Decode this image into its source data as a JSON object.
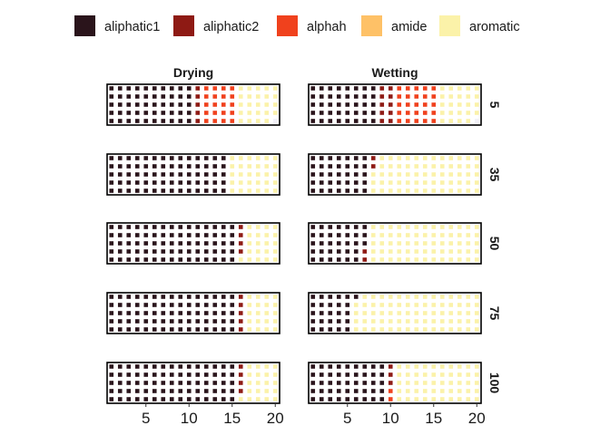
{
  "chart_data": {
    "type": "waffle",
    "legend": {
      "position": "top",
      "items": [
        {
          "label": "aliphatic1",
          "color": "#2a141b"
        },
        {
          "label": "aliphatic2",
          "color": "#8e1a14"
        },
        {
          "label": "alphah",
          "color": "#f0411d"
        },
        {
          "label": "amide",
          "color": "#fec167"
        },
        {
          "label": "aromatic",
          "color": "#fbf2a9"
        }
      ]
    },
    "columns": [
      "Drying",
      "Wetting"
    ],
    "rows": [
      "5",
      "35",
      "50",
      "75",
      "100"
    ],
    "x_ticks": [
      5,
      10,
      15,
      20
    ],
    "xlim": [
      0.5,
      20.5
    ],
    "grid_rows": 5,
    "blank_color": "#f2f0f7",
    "panels": [
      {
        "column": "Drying",
        "row": "5",
        "counts": {
          "aliphatic1": 50,
          "aliphatic2": 5,
          "alphah": 20,
          "amide": 0,
          "aromatic": 24
        }
      },
      {
        "column": "Wetting",
        "row": "5",
        "counts": {
          "aliphatic1": 40,
          "aliphatic2": 10,
          "alphah": 25,
          "amide": 0,
          "aromatic": 24
        }
      },
      {
        "column": "Drying",
        "row": "35",
        "counts": {
          "aliphatic1": 70,
          "aliphatic2": 0,
          "alphah": 0,
          "amide": 0,
          "aromatic": 30
        }
      },
      {
        "column": "Wetting",
        "row": "35",
        "counts": {
          "aliphatic1": 35,
          "aliphatic2": 2,
          "alphah": 0,
          "amide": 0,
          "aromatic": 63
        }
      },
      {
        "column": "Drying",
        "row": "50",
        "counts": {
          "aliphatic1": 75,
          "aliphatic2": 4,
          "alphah": 0,
          "amide": 0,
          "aromatic": 21
        }
      },
      {
        "column": "Wetting",
        "row": "50",
        "counts": {
          "aliphatic1": 33,
          "aliphatic2": 2,
          "alphah": 0,
          "amide": 0,
          "aromatic": 65
        }
      },
      {
        "column": "Drying",
        "row": "75",
        "counts": {
          "aliphatic1": 75,
          "aliphatic2": 5,
          "alphah": 0,
          "amide": 0,
          "aromatic": 20
        }
      },
      {
        "column": "Wetting",
        "row": "75",
        "counts": {
          "aliphatic1": 26,
          "aliphatic2": 0,
          "alphah": 0,
          "amide": 0,
          "aromatic": 74
        }
      },
      {
        "column": "Drying",
        "row": "100",
        "counts": {
          "aliphatic1": 75,
          "aliphatic2": 4,
          "alphah": 0,
          "amide": 0,
          "aromatic": 21
        }
      },
      {
        "column": "Wetting",
        "row": "100",
        "counts": {
          "aliphatic1": 45,
          "aliphatic2": 3,
          "alphah": 2,
          "amide": 0,
          "aromatic": 50
        }
      }
    ]
  }
}
